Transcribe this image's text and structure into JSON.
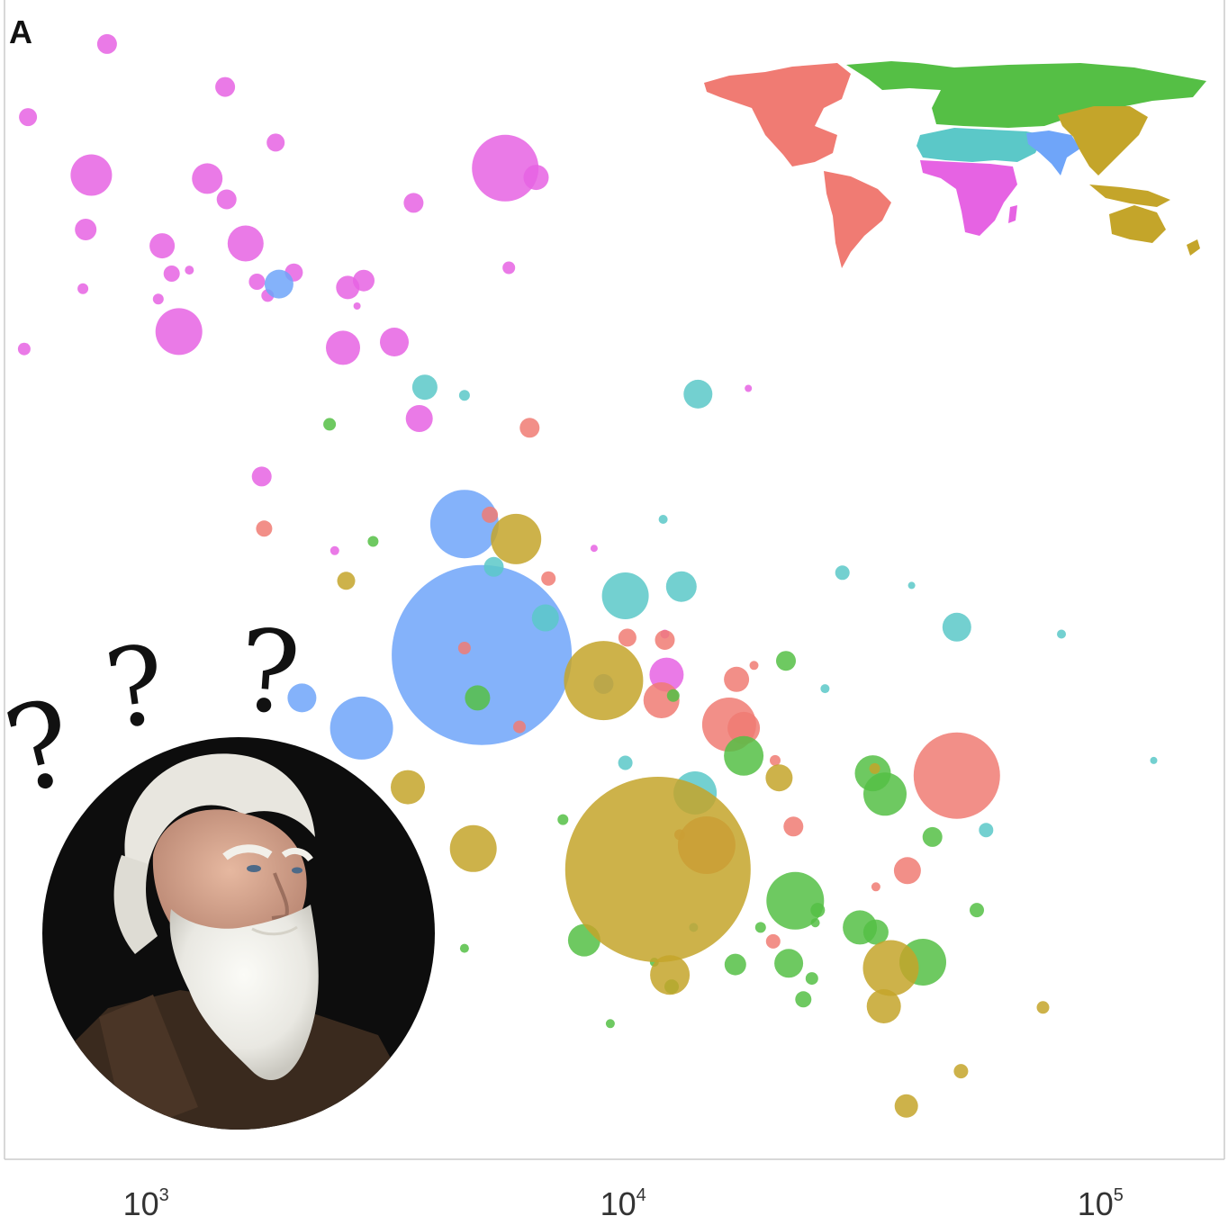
{
  "panel_label": "A",
  "colors": {
    "Americas": "#f07b73",
    "Europe & Central Asia": "#55bf45",
    "Middle East & North Africa": "#5bc8c8",
    "South Asia": "#6fa5f9",
    "East Asia & Pacific": "#c4a52a",
    "Sub-Saharan Africa": "#e663e3"
  },
  "inset": {
    "type": "world-map-legend",
    "regions": [
      "Americas",
      "Europe & Central Asia",
      "Middle East & North Africa",
      "South Asia",
      "East Asia & Pacific",
      "Sub-Saharan Africa"
    ]
  },
  "overlay": {
    "portrait": "bearded-man-portrait",
    "question_mark": "?",
    "question_mark_count": 3
  },
  "chart_data": {
    "type": "scatter",
    "title": "",
    "xlabel": "",
    "ylabel": "",
    "x_scale": "log",
    "xlim": [
      500,
      180000
    ],
    "ylim": [
      0,
      100
    ],
    "x_ticks": [
      1000,
      10000,
      100000
    ],
    "x_tick_labels": [
      {
        "base": "10",
        "exp": "3"
      },
      {
        "base": "10",
        "exp": "4"
      },
      {
        "base": "10",
        "exp": "5"
      }
    ],
    "y_ticks": [],
    "grid": false,
    "legend": "world map inset, top-right",
    "size_encoding": "bubble area",
    "points": [
      {
        "x": 820,
        "y": 96.2,
        "r": 11,
        "region": "Sub-Saharan Africa"
      },
      {
        "x": 560,
        "y": 89.9,
        "r": 10,
        "region": "Sub-Saharan Africa"
      },
      {
        "x": 1450,
        "y": 92.5,
        "r": 11,
        "region": "Sub-Saharan Africa"
      },
      {
        "x": 1850,
        "y": 87.7,
        "r": 10,
        "region": "Sub-Saharan Africa"
      },
      {
        "x": 760,
        "y": 84.9,
        "r": 23,
        "region": "Sub-Saharan Africa"
      },
      {
        "x": 1330,
        "y": 84.6,
        "r": 17,
        "region": "Sub-Saharan Africa"
      },
      {
        "x": 1460,
        "y": 82.8,
        "r": 11,
        "region": "Sub-Saharan Africa"
      },
      {
        "x": 5600,
        "y": 85.5,
        "r": 37,
        "region": "Sub-Saharan Africa"
      },
      {
        "x": 6500,
        "y": 84.7,
        "r": 14,
        "region": "Sub-Saharan Africa"
      },
      {
        "x": 3600,
        "y": 82.5,
        "r": 11,
        "region": "Sub-Saharan Africa"
      },
      {
        "x": 740,
        "y": 80.2,
        "r": 12,
        "region": "Sub-Saharan Africa"
      },
      {
        "x": 1070,
        "y": 78.8,
        "r": 14,
        "region": "Sub-Saharan Africa"
      },
      {
        "x": 1600,
        "y": 79.0,
        "r": 20,
        "region": "Sub-Saharan Africa"
      },
      {
        "x": 1120,
        "y": 76.4,
        "r": 9,
        "region": "Sub-Saharan Africa"
      },
      {
        "x": 1220,
        "y": 76.7,
        "r": 5,
        "region": "Sub-Saharan Africa"
      },
      {
        "x": 1690,
        "y": 75.7,
        "r": 9,
        "region": "Sub-Saharan Africa"
      },
      {
        "x": 1780,
        "y": 74.5,
        "r": 7,
        "region": "Sub-Saharan Africa"
      },
      {
        "x": 2020,
        "y": 76.5,
        "r": 10,
        "region": "Sub-Saharan Africa"
      },
      {
        "x": 2620,
        "y": 75.2,
        "r": 13,
        "region": "Sub-Saharan Africa"
      },
      {
        "x": 2830,
        "y": 75.8,
        "r": 12,
        "region": "Sub-Saharan Africa"
      },
      {
        "x": 2740,
        "y": 73.6,
        "r": 4,
        "region": "Sub-Saharan Africa"
      },
      {
        "x": 5700,
        "y": 76.9,
        "r": 7,
        "region": "Sub-Saharan Africa"
      },
      {
        "x": 730,
        "y": 75.1,
        "r": 6,
        "region": "Sub-Saharan Africa"
      },
      {
        "x": 1050,
        "y": 74.2,
        "r": 6,
        "region": "Sub-Saharan Africa"
      },
      {
        "x": 1160,
        "y": 71.4,
        "r": 26,
        "region": "Sub-Saharan Africa"
      },
      {
        "x": 2560,
        "y": 70.0,
        "r": 19,
        "region": "Sub-Saharan Africa"
      },
      {
        "x": 3280,
        "y": 70.5,
        "r": 16,
        "region": "Sub-Saharan Africa"
      },
      {
        "x": 550,
        "y": 69.9,
        "r": 7,
        "region": "Sub-Saharan Africa"
      },
      {
        "x": 3700,
        "y": 63.9,
        "r": 15,
        "region": "Sub-Saharan Africa"
      },
      {
        "x": 1730,
        "y": 58.9,
        "r": 11,
        "region": "Sub-Saharan Africa"
      },
      {
        "x": 2460,
        "y": 52.5,
        "r": 5,
        "region": "Sub-Saharan Africa"
      },
      {
        "x": 8600,
        "y": 52.7,
        "r": 4,
        "region": "Sub-Saharan Africa"
      },
      {
        "x": 12100,
        "y": 45.3,
        "r": 5,
        "region": "Sub-Saharan Africa"
      },
      {
        "x": 12200,
        "y": 41.8,
        "r": 19,
        "region": "Sub-Saharan Africa"
      },
      {
        "x": 18100,
        "y": 66.5,
        "r": 4,
        "region": "Sub-Saharan Africa"
      },
      {
        "x": 1880,
        "y": 75.5,
        "r": 16,
        "region": "South Asia"
      },
      {
        "x": 4600,
        "y": 54.8,
        "r": 38,
        "region": "South Asia"
      },
      {
        "x": 5000,
        "y": 43.5,
        "r": 100,
        "region": "South Asia"
      },
      {
        "x": 2800,
        "y": 37.2,
        "r": 35,
        "region": "South Asia"
      },
      {
        "x": 2100,
        "y": 39.8,
        "r": 16,
        "region": "South Asia"
      },
      {
        "x": 9000,
        "y": 41.0,
        "r": 11,
        "region": "South Asia"
      },
      {
        "x": 3800,
        "y": 66.6,
        "r": 14,
        "region": "Middle East & North Africa"
      },
      {
        "x": 4600,
        "y": 65.9,
        "r": 6,
        "region": "Middle East & North Africa"
      },
      {
        "x": 14200,
        "y": 66.0,
        "r": 16,
        "region": "Middle East & North Africa"
      },
      {
        "x": 12000,
        "y": 55.2,
        "r": 5,
        "region": "Middle East & North Africa"
      },
      {
        "x": 5300,
        "y": 51.1,
        "r": 11,
        "region": "Middle East & North Africa"
      },
      {
        "x": 10000,
        "y": 48.6,
        "r": 26,
        "region": "Middle East & North Africa"
      },
      {
        "x": 13100,
        "y": 49.4,
        "r": 17,
        "region": "Middle East & North Africa"
      },
      {
        "x": 6800,
        "y": 46.7,
        "r": 15,
        "region": "Middle East & North Africa"
      },
      {
        "x": 28500,
        "y": 50.6,
        "r": 8,
        "region": "Middle East & North Africa"
      },
      {
        "x": 39800,
        "y": 49.5,
        "r": 4,
        "region": "Middle East & North Africa"
      },
      {
        "x": 49500,
        "y": 45.9,
        "r": 16,
        "region": "Middle East & North Africa"
      },
      {
        "x": 82000,
        "y": 45.3,
        "r": 5,
        "region": "Middle East & North Africa"
      },
      {
        "x": 10000,
        "y": 34.2,
        "r": 8,
        "region": "Middle East & North Africa"
      },
      {
        "x": 14000,
        "y": 31.6,
        "r": 24,
        "region": "Middle East & North Africa"
      },
      {
        "x": 57000,
        "y": 28.4,
        "r": 8,
        "region": "Middle East & North Africa"
      },
      {
        "x": 128000,
        "y": 34.4,
        "r": 4,
        "region": "Middle East & North Africa"
      },
      {
        "x": 26200,
        "y": 40.6,
        "r": 5,
        "region": "Middle East & North Africa"
      },
      {
        "x": 13900,
        "y": 20.0,
        "r": 5,
        "region": "Middle East & North Africa"
      },
      {
        "x": 6300,
        "y": 63.1,
        "r": 11,
        "region": "Americas"
      },
      {
        "x": 5200,
        "y": 55.6,
        "r": 9,
        "region": "Americas"
      },
      {
        "x": 1750,
        "y": 54.4,
        "r": 9,
        "region": "Americas"
      },
      {
        "x": 6900,
        "y": 50.1,
        "r": 8,
        "region": "Americas"
      },
      {
        "x": 4600,
        "y": 44.1,
        "r": 7,
        "region": "Americas"
      },
      {
        "x": 10100,
        "y": 45.0,
        "r": 10,
        "region": "Americas"
      },
      {
        "x": 12100,
        "y": 44.8,
        "r": 11,
        "region": "Americas"
      },
      {
        "x": 11900,
        "y": 39.6,
        "r": 20,
        "region": "Americas"
      },
      {
        "x": 16500,
        "y": 37.5,
        "r": 30,
        "region": "Americas"
      },
      {
        "x": 17700,
        "y": 37.2,
        "r": 18,
        "region": "Americas"
      },
      {
        "x": 17100,
        "y": 41.4,
        "r": 14,
        "region": "Americas"
      },
      {
        "x": 18600,
        "y": 42.6,
        "r": 5,
        "region": "Americas"
      },
      {
        "x": 6000,
        "y": 37.3,
        "r": 7,
        "region": "Americas"
      },
      {
        "x": 20600,
        "y": 34.4,
        "r": 6,
        "region": "Americas"
      },
      {
        "x": 49500,
        "y": 33.1,
        "r": 48,
        "region": "Americas"
      },
      {
        "x": 22500,
        "y": 28.7,
        "r": 11,
        "region": "Americas"
      },
      {
        "x": 14800,
        "y": 27.1,
        "r": 32,
        "region": "Americas"
      },
      {
        "x": 13000,
        "y": 28.0,
        "r": 6,
        "region": "Americas"
      },
      {
        "x": 39000,
        "y": 24.9,
        "r": 15,
        "region": "Americas"
      },
      {
        "x": 33500,
        "y": 23.5,
        "r": 5,
        "region": "Americas"
      },
      {
        "x": 20400,
        "y": 18.8,
        "r": 8,
        "region": "Americas"
      },
      {
        "x": 2400,
        "y": 63.4,
        "r": 7,
        "region": "Europe & Central Asia"
      },
      {
        "x": 2960,
        "y": 53.3,
        "r": 6,
        "region": "Europe & Central Asia"
      },
      {
        "x": 4900,
        "y": 39.8,
        "r": 14,
        "region": "Europe & Central Asia"
      },
      {
        "x": 7400,
        "y": 29.3,
        "r": 6,
        "region": "Europe & Central Asia"
      },
      {
        "x": 12600,
        "y": 40.0,
        "r": 7,
        "region": "Europe & Central Asia"
      },
      {
        "x": 21700,
        "y": 43.0,
        "r": 11,
        "region": "Europe & Central Asia"
      },
      {
        "x": 17700,
        "y": 34.8,
        "r": 22,
        "region": "Europe & Central Asia"
      },
      {
        "x": 33000,
        "y": 33.3,
        "r": 20,
        "region": "Europe & Central Asia"
      },
      {
        "x": 35000,
        "y": 31.5,
        "r": 24,
        "region": "Europe & Central Asia"
      },
      {
        "x": 44000,
        "y": 27.8,
        "r": 11,
        "region": "Europe & Central Asia"
      },
      {
        "x": 22700,
        "y": 22.3,
        "r": 32,
        "region": "Europe & Central Asia"
      },
      {
        "x": 25300,
        "y": 21.5,
        "r": 8,
        "region": "Europe & Central Asia"
      },
      {
        "x": 31000,
        "y": 20.0,
        "r": 19,
        "region": "Europe & Central Asia"
      },
      {
        "x": 33500,
        "y": 19.6,
        "r": 14,
        "region": "Europe & Central Asia"
      },
      {
        "x": 42000,
        "y": 17.0,
        "r": 26,
        "region": "Europe & Central Asia"
      },
      {
        "x": 19200,
        "y": 20.0,
        "r": 6,
        "region": "Europe & Central Asia"
      },
      {
        "x": 25000,
        "y": 20.4,
        "r": 5,
        "region": "Europe & Central Asia"
      },
      {
        "x": 8200,
        "y": 18.9,
        "r": 18,
        "region": "Europe & Central Asia"
      },
      {
        "x": 11500,
        "y": 17.0,
        "r": 5,
        "region": "Europe & Central Asia"
      },
      {
        "x": 17000,
        "y": 16.8,
        "r": 12,
        "region": "Europe & Central Asia"
      },
      {
        "x": 22000,
        "y": 16.9,
        "r": 16,
        "region": "Europe & Central Asia"
      },
      {
        "x": 24600,
        "y": 15.6,
        "r": 7,
        "region": "Europe & Central Asia"
      },
      {
        "x": 12500,
        "y": 14.9,
        "r": 8,
        "region": "Europe & Central Asia"
      },
      {
        "x": 23600,
        "y": 13.8,
        "r": 9,
        "region": "Europe & Central Asia"
      },
      {
        "x": 54500,
        "y": 21.5,
        "r": 8,
        "region": "Europe & Central Asia"
      },
      {
        "x": 9300,
        "y": 11.7,
        "r": 5,
        "region": "Europe & Central Asia"
      },
      {
        "x": 4600,
        "y": 18.2,
        "r": 5,
        "region": "Europe & Central Asia"
      },
      {
        "x": 2600,
        "y": 49.9,
        "r": 10,
        "region": "East Asia & Pacific"
      },
      {
        "x": 5900,
        "y": 53.5,
        "r": 28,
        "region": "East Asia & Pacific"
      },
      {
        "x": 9000,
        "y": 41.3,
        "r": 44,
        "region": "East Asia & Pacific"
      },
      {
        "x": 3500,
        "y": 32.1,
        "r": 19,
        "region": "East Asia & Pacific"
      },
      {
        "x": 4800,
        "y": 26.8,
        "r": 26,
        "region": "East Asia & Pacific"
      },
      {
        "x": 11700,
        "y": 25.0,
        "r": 103,
        "region": "East Asia & Pacific"
      },
      {
        "x": 21000,
        "y": 32.9,
        "r": 15,
        "region": "East Asia & Pacific"
      },
      {
        "x": 33300,
        "y": 33.7,
        "r": 6,
        "region": "East Asia & Pacific"
      },
      {
        "x": 12400,
        "y": 15.9,
        "r": 22,
        "region": "East Asia & Pacific"
      },
      {
        "x": 36000,
        "y": 16.5,
        "r": 31,
        "region": "East Asia & Pacific"
      },
      {
        "x": 34800,
        "y": 13.2,
        "r": 19,
        "region": "East Asia & Pacific"
      },
      {
        "x": 75000,
        "y": 13.1,
        "r": 7,
        "region": "East Asia & Pacific"
      },
      {
        "x": 50500,
        "y": 7.6,
        "r": 8,
        "region": "East Asia & Pacific"
      },
      {
        "x": 38800,
        "y": 4.6,
        "r": 13,
        "region": "East Asia & Pacific"
      }
    ]
  }
}
